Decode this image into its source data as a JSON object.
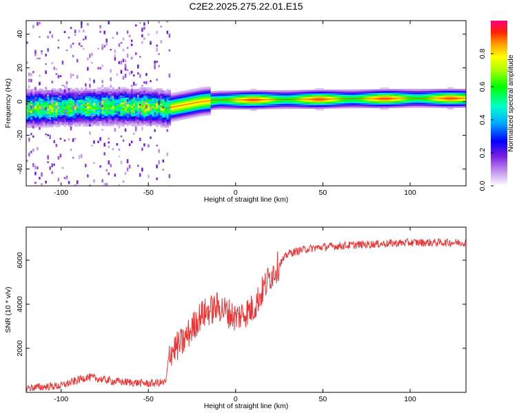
{
  "title": "C2E2.2025.275.22.01.E15",
  "colors": {
    "snr_line": "#ee3333",
    "colormap": [
      "#ffffff",
      "#8a2be2",
      "#0000ff",
      "#00c8ff",
      "#00ff00",
      "#ffff00",
      "#ff8000",
      "#ff0000",
      "#ff00a0"
    ]
  },
  "chart_data": [
    {
      "type": "heatmap",
      "title": "C2E2.2025.275.22.01.E15",
      "xlabel": "Height of straight line (km)",
      "ylabel": "Frequency (Hz)",
      "xlim": [
        -120,
        132
      ],
      "ylim": [
        -50,
        48
      ],
      "x_ticks": [
        -100,
        -50,
        0,
        50,
        100
      ],
      "y_ticks": [
        -40,
        -20,
        0,
        20,
        40
      ],
      "grid": false,
      "colorbar": {
        "label": "Normalized spectral amplitude",
        "range": [
          0,
          1
        ],
        "ticks": [
          0.0,
          0.2,
          0.4,
          0.6,
          0.8
        ]
      },
      "ridge": {
        "description_points_x": [
          -120,
          -80,
          -50,
          -40,
          -30,
          -20,
          -10,
          0,
          50,
          100,
          132
        ],
        "peak_frequency_hz": [
          -4,
          -3,
          -3,
          -4,
          -2,
          0,
          1,
          1,
          1.5,
          2,
          2
        ]
      }
    },
    {
      "type": "line",
      "xlabel": "Height of straight line (km)",
      "ylabel": "SNR (10 * v/v)",
      "xlim": [
        -120,
        132
      ],
      "ylim": [
        0,
        7500
      ],
      "x_ticks": [
        -100,
        -50,
        0,
        50,
        100
      ],
      "y_ticks": [
        2000,
        4000,
        6000
      ],
      "grid": false,
      "trend": {
        "x": [
          -120,
          -100,
          -85,
          -70,
          -50,
          -40,
          -38,
          -30,
          -20,
          -10,
          0,
          10,
          20,
          30,
          40,
          50,
          70,
          100,
          132
        ],
        "y": [
          200,
          300,
          700,
          500,
          400,
          450,
          1800,
          2300,
          3500,
          3900,
          3400,
          3800,
          5300,
          6300,
          6500,
          6600,
          6700,
          6800,
          6800
        ]
      }
    }
  ]
}
